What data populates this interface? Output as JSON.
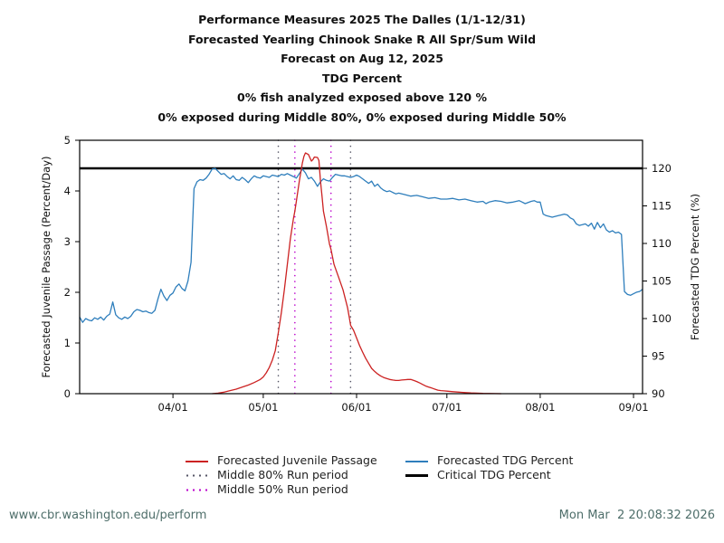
{
  "titles": [
    "Performance Measures 2025 The Dalles (1/1-12/31)",
    "Forecasted Yearling Chinook Snake R All Spr/Sum Wild",
    "Forecast on Aug 12, 2025",
    "TDG Percent",
    "0% fish analyzed exposed above 120 %",
    "0% exposed during Middle 80%, 0% exposed during Middle 50%"
  ],
  "chart_data": {
    "type": "line",
    "x_axis": {
      "start_date": "03/01",
      "end_date": "09/05",
      "range_days": [
        0,
        187
      ],
      "ticks": [
        {
          "day": 31,
          "label": "04/01"
        },
        {
          "day": 61,
          "label": "05/01"
        },
        {
          "day": 92,
          "label": "06/01"
        },
        {
          "day": 122,
          "label": "07/01"
        },
        {
          "day": 153,
          "label": "08/01"
        },
        {
          "day": 184,
          "label": "09/01"
        }
      ]
    },
    "left_axis": {
      "label": "Forecasted Juvenile Passage (Percent/Day)",
      "range": [
        0,
        5
      ],
      "ticks": [
        0,
        1,
        2,
        3,
        4,
        5
      ]
    },
    "right_axis": {
      "label": "Forecasted TDG Percent (%)",
      "range": [
        90,
        120
      ],
      "ticks": [
        90,
        95,
        100,
        105,
        110,
        115,
        120
      ]
    },
    "critical_tdg_percent": 120,
    "middle80_run_period_days": [
      66,
      90
    ],
    "middle50_run_period_days": [
      71.5,
      83.5
    ],
    "series": [
      {
        "name": "Forecasted TDG Percent",
        "axis": "right",
        "color": "#2e7ebc",
        "points": [
          [
            0,
            100.2
          ],
          [
            1,
            99.5
          ],
          [
            2,
            100.0
          ],
          [
            3,
            99.8
          ],
          [
            4,
            99.7
          ],
          [
            5,
            100.1
          ],
          [
            6,
            99.9
          ],
          [
            7,
            100.2
          ],
          [
            8,
            99.8
          ],
          [
            9,
            100.3
          ],
          [
            10,
            100.6
          ],
          [
            11,
            102.2
          ],
          [
            12,
            100.5
          ],
          [
            13,
            100.1
          ],
          [
            14,
            99.9
          ],
          [
            15,
            100.2
          ],
          [
            16,
            100.0
          ],
          [
            17,
            100.3
          ],
          [
            18,
            100.9
          ],
          [
            19,
            101.2
          ],
          [
            20,
            101.1
          ],
          [
            21,
            100.9
          ],
          [
            22,
            101.0
          ],
          [
            23,
            100.8
          ],
          [
            24,
            100.7
          ],
          [
            25,
            101.1
          ],
          [
            26,
            102.6
          ],
          [
            27,
            103.9
          ],
          [
            28,
            103.0
          ],
          [
            29,
            102.4
          ],
          [
            30,
            103.1
          ],
          [
            31,
            103.4
          ],
          [
            32,
            104.2
          ],
          [
            33,
            104.6
          ],
          [
            34,
            104.0
          ],
          [
            35,
            103.7
          ],
          [
            36,
            105.0
          ],
          [
            37,
            107.5
          ],
          [
            38,
            117.3
          ],
          [
            39,
            118.2
          ],
          [
            40,
            118.5
          ],
          [
            41,
            118.4
          ],
          [
            42,
            118.7
          ],
          [
            43,
            119.2
          ],
          [
            44,
            119.9
          ],
          [
            45,
            120.0
          ],
          [
            46,
            119.6
          ],
          [
            47,
            119.2
          ],
          [
            48,
            119.3
          ],
          [
            49,
            118.9
          ],
          [
            50,
            118.6
          ],
          [
            51,
            119.0
          ],
          [
            52,
            118.5
          ],
          [
            53,
            118.4
          ],
          [
            54,
            118.8
          ],
          [
            55,
            118.5
          ],
          [
            56,
            118.1
          ],
          [
            57,
            118.6
          ],
          [
            58,
            119.0
          ],
          [
            59,
            118.8
          ],
          [
            60,
            118.7
          ],
          [
            61,
            119.0
          ],
          [
            62,
            118.9
          ],
          [
            63,
            118.8
          ],
          [
            64,
            119.1
          ],
          [
            65,
            119.0
          ],
          [
            66,
            118.9
          ],
          [
            67,
            119.2
          ],
          [
            68,
            119.1
          ],
          [
            69,
            119.3
          ],
          [
            70,
            119.1
          ],
          [
            71,
            118.9
          ],
          [
            72,
            118.7
          ],
          [
            73,
            119.3
          ],
          [
            74,
            119.9
          ],
          [
            75,
            119.4
          ],
          [
            76,
            118.6
          ],
          [
            77,
            118.8
          ],
          [
            78,
            118.3
          ],
          [
            79,
            117.6
          ],
          [
            80,
            118.2
          ],
          [
            81,
            118.6
          ],
          [
            82,
            118.4
          ],
          [
            83,
            118.3
          ],
          [
            84,
            118.8
          ],
          [
            85,
            119.2
          ],
          [
            86,
            119.1
          ],
          [
            87,
            119.0
          ],
          [
            88,
            119.0
          ],
          [
            89,
            118.9
          ],
          [
            90,
            118.8
          ],
          [
            91,
            118.9
          ],
          [
            92,
            119.1
          ],
          [
            93,
            118.9
          ],
          [
            94,
            118.6
          ],
          [
            95,
            118.3
          ],
          [
            96,
            118.0
          ],
          [
            97,
            118.3
          ],
          [
            98,
            117.6
          ],
          [
            99,
            117.9
          ],
          [
            100,
            117.4
          ],
          [
            101,
            117.1
          ],
          [
            102,
            116.9
          ],
          [
            103,
            117.0
          ],
          [
            104,
            116.8
          ],
          [
            105,
            116.6
          ],
          [
            106,
            116.7
          ],
          [
            108,
            116.5
          ],
          [
            110,
            116.3
          ],
          [
            112,
            116.4
          ],
          [
            114,
            116.2
          ],
          [
            116,
            116.0
          ],
          [
            118,
            116.1
          ],
          [
            120,
            115.9
          ],
          [
            122,
            115.9
          ],
          [
            124,
            116.0
          ],
          [
            126,
            115.8
          ],
          [
            128,
            115.9
          ],
          [
            130,
            115.7
          ],
          [
            132,
            115.5
          ],
          [
            134,
            115.6
          ],
          [
            135,
            115.3
          ],
          [
            136,
            115.5
          ],
          [
            138,
            115.7
          ],
          [
            140,
            115.6
          ],
          [
            142,
            115.4
          ],
          [
            144,
            115.5
          ],
          [
            146,
            115.7
          ],
          [
            147,
            115.5
          ],
          [
            148,
            115.3
          ],
          [
            150,
            115.6
          ],
          [
            151,
            115.7
          ],
          [
            152,
            115.5
          ],
          [
            153,
            115.5
          ],
          [
            154,
            113.9
          ],
          [
            155,
            113.7
          ],
          [
            156,
            113.6
          ],
          [
            157,
            113.5
          ],
          [
            158,
            113.6
          ],
          [
            159,
            113.7
          ],
          [
            160,
            113.8
          ],
          [
            161,
            113.9
          ],
          [
            162,
            113.8
          ],
          [
            163,
            113.4
          ],
          [
            164,
            113.2
          ],
          [
            165,
            112.6
          ],
          [
            166,
            112.4
          ],
          [
            167,
            112.5
          ],
          [
            168,
            112.6
          ],
          [
            169,
            112.3
          ],
          [
            170,
            112.7
          ],
          [
            171,
            111.9
          ],
          [
            172,
            112.8
          ],
          [
            173,
            112.1
          ],
          [
            174,
            112.6
          ],
          [
            175,
            111.8
          ],
          [
            176,
            111.5
          ],
          [
            177,
            111.7
          ],
          [
            178,
            111.4
          ],
          [
            179,
            111.5
          ],
          [
            180,
            111.2
          ],
          [
            181,
            103.6
          ],
          [
            182,
            103.2
          ],
          [
            183,
            103.1
          ],
          [
            184,
            103.3
          ],
          [
            185,
            103.5
          ],
          [
            186,
            103.6
          ],
          [
            187,
            103.9
          ]
        ]
      },
      {
        "name": "Forecasted Juvenile Passage",
        "axis": "left",
        "color": "#cc2222",
        "points": [
          [
            44,
            0.0
          ],
          [
            46,
            0.01
          ],
          [
            48,
            0.03
          ],
          [
            50,
            0.06
          ],
          [
            52,
            0.09
          ],
          [
            54,
            0.13
          ],
          [
            56,
            0.17
          ],
          [
            58,
            0.22
          ],
          [
            60,
            0.28
          ],
          [
            61,
            0.33
          ],
          [
            62,
            0.41
          ],
          [
            63,
            0.52
          ],
          [
            64,
            0.66
          ],
          [
            65,
            0.85
          ],
          [
            66,
            1.2
          ],
          [
            67,
            1.6
          ],
          [
            68,
            2.05
          ],
          [
            69,
            2.55
          ],
          [
            70,
            3.05
          ],
          [
            71,
            3.45
          ],
          [
            71.5,
            3.6
          ],
          [
            72,
            3.8
          ],
          [
            73,
            4.2
          ],
          [
            74,
            4.55
          ],
          [
            74.5,
            4.68
          ],
          [
            75,
            4.75
          ],
          [
            76,
            4.72
          ],
          [
            77,
            4.59
          ],
          [
            77.5,
            4.62
          ],
          [
            78,
            4.67
          ],
          [
            79,
            4.66
          ],
          [
            79.5,
            4.6
          ],
          [
            80,
            4.2
          ],
          [
            80.5,
            3.9
          ],
          [
            81,
            3.6
          ],
          [
            82,
            3.3
          ],
          [
            83,
            2.95
          ],
          [
            83.5,
            2.85
          ],
          [
            84.5,
            2.55
          ],
          [
            86,
            2.3
          ],
          [
            87.5,
            2.05
          ],
          [
            89,
            1.7
          ],
          [
            89.6,
            1.5
          ],
          [
            90,
            1.35
          ],
          [
            91,
            1.25
          ],
          [
            92,
            1.1
          ],
          [
            93,
            0.95
          ],
          [
            94,
            0.82
          ],
          [
            95,
            0.7
          ],
          [
            96,
            0.6
          ],
          [
            97,
            0.5
          ],
          [
            98,
            0.44
          ],
          [
            99,
            0.39
          ],
          [
            100,
            0.35
          ],
          [
            101,
            0.32
          ],
          [
            102,
            0.3
          ],
          [
            103,
            0.28
          ],
          [
            104,
            0.27
          ],
          [
            105,
            0.26
          ],
          [
            106,
            0.26
          ],
          [
            107,
            0.27
          ],
          [
            108,
            0.275
          ],
          [
            109,
            0.28
          ],
          [
            110,
            0.28
          ],
          [
            111,
            0.26
          ],
          [
            112,
            0.24
          ],
          [
            113,
            0.21
          ],
          [
            114,
            0.18
          ],
          [
            115,
            0.15
          ],
          [
            116,
            0.13
          ],
          [
            117,
            0.11
          ],
          [
            118,
            0.09
          ],
          [
            119,
            0.07
          ],
          [
            120,
            0.06
          ],
          [
            121,
            0.055
          ],
          [
            122,
            0.05
          ],
          [
            124,
            0.04
          ],
          [
            126,
            0.03
          ],
          [
            128,
            0.022
          ],
          [
            130,
            0.015
          ],
          [
            132,
            0.01
          ],
          [
            134,
            0.006
          ],
          [
            136,
            0.003
          ],
          [
            138,
            0.001
          ],
          [
            140,
            0.0
          ]
        ]
      }
    ],
    "reference_lines": [
      {
        "name": "Critical TDG Percent",
        "axis": "right",
        "value": 120,
        "color": "#000000"
      }
    ],
    "grid": false,
    "legend_position": "bottom"
  },
  "legend": {
    "items": [
      {
        "label": "Forecasted Juvenile Passage",
        "swatch": "line",
        "color": "#cc2222"
      },
      {
        "label": "Middle 80% Run period",
        "swatch": "dots",
        "color": "#555566"
      },
      {
        "label": "Middle 50% Run period",
        "swatch": "dots",
        "color": "#bb00cc"
      },
      {
        "label": "Forecasted TDG Percent",
        "swatch": "line",
        "color": "#2e7ebc"
      },
      {
        "label": "Critical TDG Percent",
        "swatch": "line",
        "color": "#000000"
      }
    ]
  },
  "footer": {
    "url": "www.cbr.washington.edu/perform",
    "timestamp": "Mon Mar  2 20:08:32 2026"
  },
  "colors": {
    "juvenile_passage": "#cc2222",
    "tdg_percent": "#2e7ebc",
    "critical_line": "#000000",
    "middle80_dots": "#555566",
    "middle50_dots": "#bb00cc",
    "footer_text": "#4e6e6a",
    "background": "#ffffff"
  }
}
